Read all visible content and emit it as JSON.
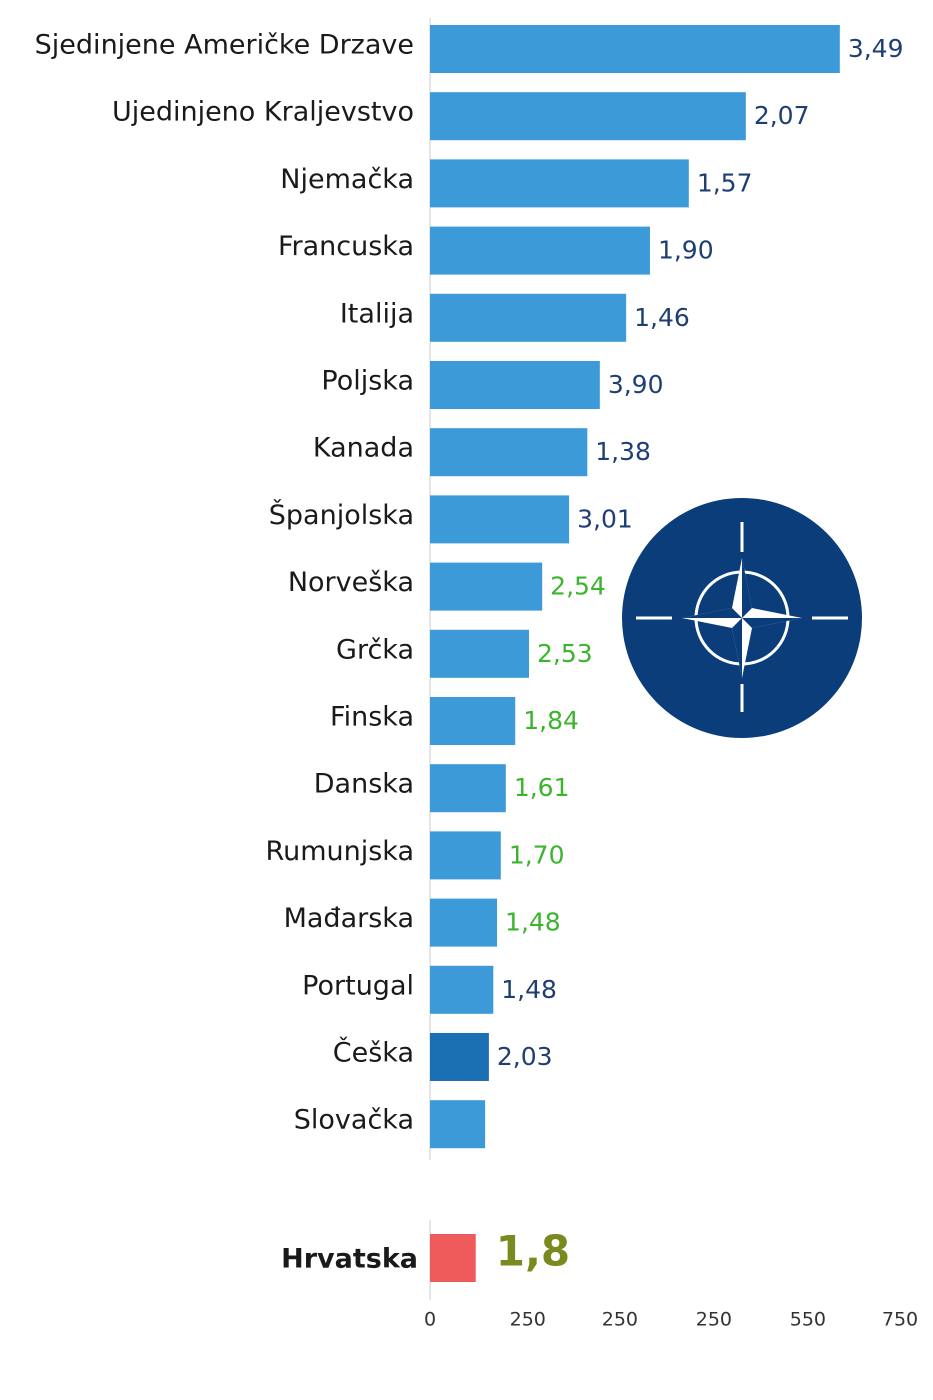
{
  "chart_data": {
    "type": "hbar",
    "categories": [
      "Sjedinjene Američke Drzave",
      "Ujedinjeno Kraljevstvo",
      "Njemačka",
      "Francuska",
      "Italija",
      "Poljska",
      "Kanada",
      "Španjolska",
      "Norveška",
      "Grčka",
      "Finska",
      "Danska",
      "Rumunjska",
      "Mađarska",
      "Portugal",
      "Češka",
      "Slovačka"
    ],
    "values": [
      654,
      504,
      413,
      351,
      313,
      271,
      251,
      222,
      179,
      158,
      136,
      121,
      113,
      107,
      101,
      94,
      88
    ],
    "colors": [
      "#3d9ad9",
      "#3d9ad9",
      "#3d9ad9",
      "#3d9ad9",
      "#3d9ad9",
      "#3d9ad9",
      "#3d9ad9",
      "#3d9ad9",
      "#3d9ad9",
      "#3d9ad9",
      "#3d9ad9",
      "#3d9ad9",
      "#3d9ad9",
      "#3d9ad9",
      "#3d9ad9",
      "#1b6fb3",
      "#3d9ad9"
    ],
    "annotations": [
      "3,49",
      "2,07",
      "1,57",
      "1,90",
      "1,46",
      "3,90",
      "1,38",
      "3,01",
      "2,54",
      "2,53",
      "1,84",
      "1,61",
      "1,70",
      "1,48",
      "1,48",
      "2,03",
      null
    ],
    "annotation_colors": [
      "#1f3f73",
      "#1f3f73",
      "#1f3f73",
      "#1f3f73",
      "#1f3f73",
      "#1f3f73",
      "#1f3f73",
      "#1f3f73",
      "#3cb52e",
      "#3cb52e",
      "#3cb52e",
      "#3cb52e",
      "#3cb52e",
      "#3cb52e",
      "#1f3f73",
      "#1f3f73",
      null
    ],
    "highlight": {
      "category": "Hrvatska",
      "value": 73,
      "color": "#ef5b5b",
      "annotation": "1,8",
      "annotation_color": "#7a8a1e"
    },
    "xlim": [
      0,
      750
    ],
    "xticks": [
      0,
      {
        "value": 156,
        "label": "250"
      },
      {
        "value": 303,
        "label": "250"
      },
      {
        "value": 453,
        "label": "250"
      },
      {
        "value": 603,
        "label": "550"
      },
      750
    ]
  }
}
